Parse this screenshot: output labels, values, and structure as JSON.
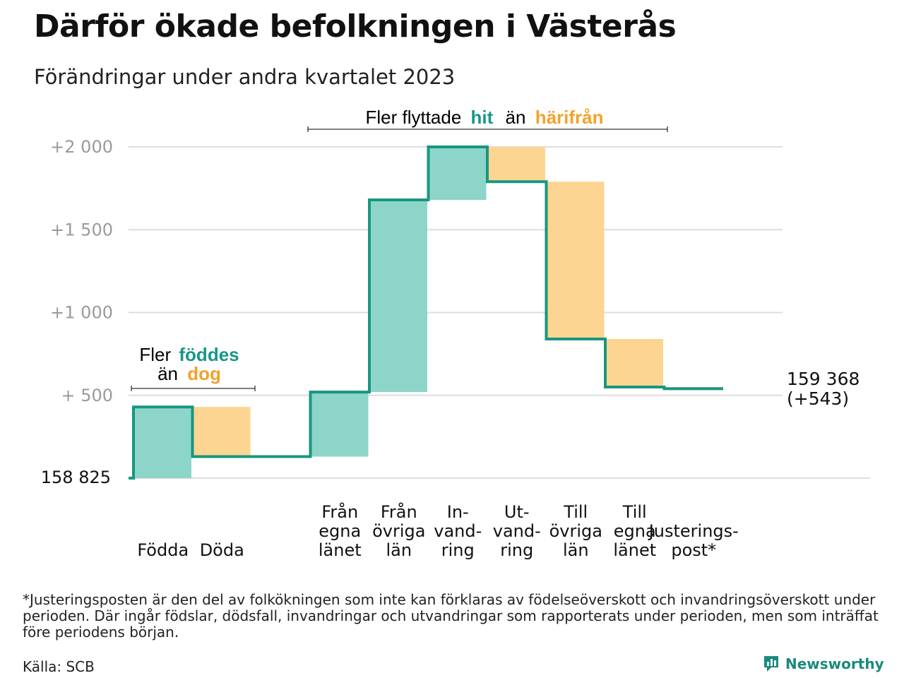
{
  "title": "Därför ökade befolkningen i Västerås",
  "subtitle": "Förändringar under andra kvartalet 2023",
  "colors": {
    "increase": "#8dd5c9",
    "decrease": "#fbd591",
    "line": "#189680",
    "grid": "#dddddd",
    "teal_text": "#17978a",
    "orange_text": "#f2a22a"
  },
  "chart_data": {
    "type": "waterfall",
    "baseline_label": "158 825",
    "ylim": [
      0,
      2000
    ],
    "y_ticks": [
      {
        "value": 500,
        "label": "+ 500"
      },
      {
        "value": 1000,
        "label": "+1 000"
      },
      {
        "value": 1500,
        "label": "+1 500"
      },
      {
        "value": 2000,
        "label": "+2 000"
      }
    ],
    "steps": [
      {
        "category": "Födda",
        "lines": [
          "Födda"
        ],
        "value": 430
      },
      {
        "category": "Döda",
        "lines": [
          "Döda"
        ],
        "value": -300
      },
      {
        "category": "",
        "lines": [],
        "value": 0
      },
      {
        "category": "Från egna länet",
        "lines": [
          "Från",
          "egna",
          "länet"
        ],
        "value": 390
      },
      {
        "category": "Från övriga län",
        "lines": [
          "Från",
          "övriga",
          "län"
        ],
        "value": 1160
      },
      {
        "category": "Invandring",
        "lines": [
          "In-",
          "vand-",
          "ring"
        ],
        "value": 320
      },
      {
        "category": "Utvandring",
        "lines": [
          "Ut-",
          "vand-",
          "ring"
        ],
        "value": -210
      },
      {
        "category": "Till övriga län",
        "lines": [
          "Till",
          "övriga",
          "län"
        ],
        "value": -950
      },
      {
        "category": "Till egna länet",
        "lines": [
          "Till",
          "egna",
          "länet"
        ],
        "value": -290
      },
      {
        "category": "Justeringspost*",
        "lines": [
          "Justerings-",
          "post*"
        ],
        "value": -10
      }
    ],
    "final": {
      "value_label": "159 368",
      "change_label": "(+543)"
    },
    "annotations": {
      "natural": {
        "line1_prefix": "Fler",
        "line1_highlight": "föddes",
        "line2_prefix": "än",
        "line2_highlight": "dog"
      },
      "migration": {
        "prefix": "Fler flyttade",
        "highlight1": "hit",
        "middle": "än",
        "highlight2": "härifrån"
      }
    }
  },
  "footnote": "*Justeringsposten är den del av folkökningen som inte kan förklaras av födelseöverskott och invandringsöverskott under perioden. Där ingår födslar, dödsfall, invandringar och utvandringar som rapporterats under perioden, men som inträffat före periodens början.",
  "source": "Källa: SCB",
  "brand": {
    "name": "Newsworthy",
    "icon": "newsworthy-logo-icon"
  }
}
